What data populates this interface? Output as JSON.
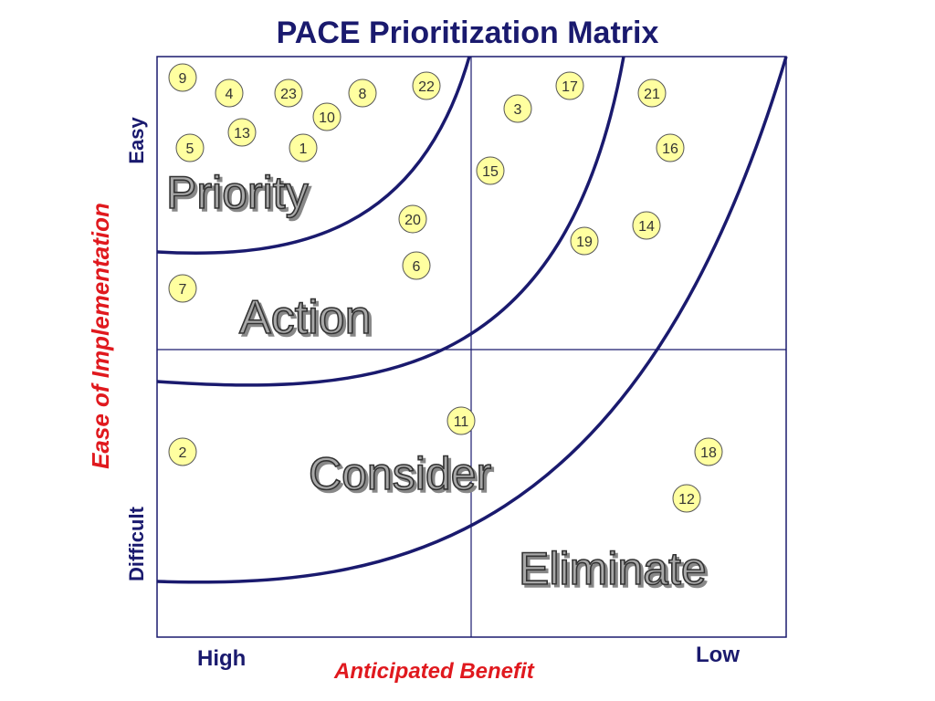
{
  "title": "PACE Prioritization Matrix",
  "y_axis": {
    "label": "Ease of Implementation",
    "top": "Easy",
    "bottom": "Difficult"
  },
  "x_axis": {
    "label": "Anticipated Benefit",
    "left": "High",
    "right": "Low"
  },
  "zones": [
    "Priority",
    "Action",
    "Consider",
    "Eliminate"
  ],
  "items": [
    "9",
    "4",
    "23",
    "8",
    "22",
    "3",
    "17",
    "21",
    "10",
    "13",
    "5",
    "1",
    "16",
    "15",
    "20",
    "14",
    "19",
    "6",
    "7",
    "11",
    "2",
    "18",
    "12"
  ],
  "colors": {
    "title": "#1a1a6e",
    "axis_label": "#e0191e",
    "curve": "#1a1a6e",
    "bubble_fill": "#ffffa0",
    "bubble_stroke": "#555555"
  }
}
